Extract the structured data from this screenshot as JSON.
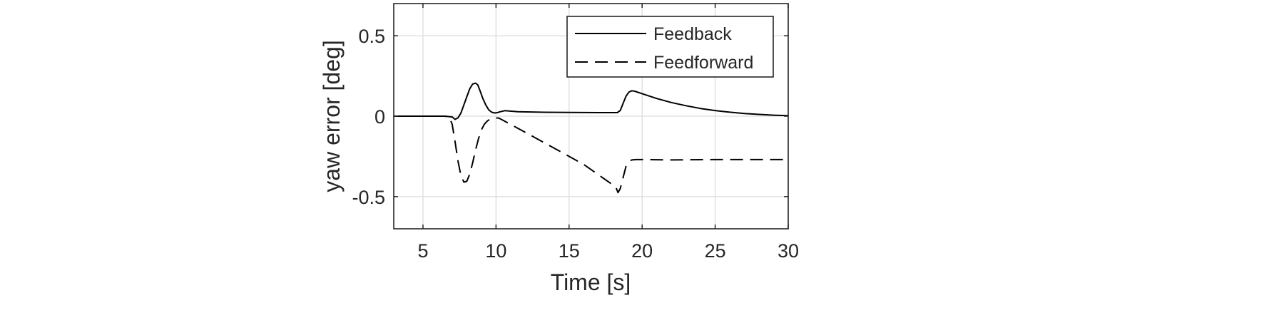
{
  "chart_data": {
    "type": "line",
    "title": "",
    "xlabel": "Time [s]",
    "ylabel": "yaw error [deg]",
    "xlim": [
      3,
      30
    ],
    "ylim": [
      -0.7,
      0.7
    ],
    "xticks": [
      5,
      10,
      15,
      20,
      25,
      30
    ],
    "yticks": [
      -0.5,
      0,
      0.5
    ],
    "xtick_labels": [
      "5",
      "10",
      "15",
      "20",
      "25",
      "30"
    ],
    "ytick_labels": [
      "-0.5",
      "0",
      "0.5"
    ],
    "grid": true,
    "legend_position": "top-right",
    "series": [
      {
        "name": "Feedback",
        "style": "solid",
        "color": "#000000",
        "x": [
          3,
          6.5,
          7.0,
          7.2,
          7.4,
          7.6,
          7.8,
          8.0,
          8.2,
          8.4,
          8.6,
          8.75,
          8.9,
          9.1,
          9.3,
          9.5,
          9.7,
          9.9,
          10.1,
          10.3,
          10.6,
          10.9,
          11.5,
          13,
          15,
          17,
          18.3,
          18.5,
          18.7,
          18.9,
          19.1,
          19.3,
          19.5,
          20,
          20.5,
          21,
          22,
          23,
          24,
          25,
          26,
          27,
          28,
          29,
          30
        ],
        "y": [
          0,
          0,
          -0.005,
          -0.02,
          -0.01,
          0.02,
          0.07,
          0.12,
          0.17,
          0.2,
          0.205,
          0.195,
          0.16,
          0.11,
          0.07,
          0.04,
          0.025,
          0.02,
          0.022,
          0.028,
          0.034,
          0.032,
          0.028,
          0.025,
          0.023,
          0.022,
          0.022,
          0.035,
          0.08,
          0.125,
          0.15,
          0.158,
          0.155,
          0.14,
          0.125,
          0.11,
          0.085,
          0.065,
          0.048,
          0.035,
          0.025,
          0.017,
          0.011,
          0.006,
          0.003
        ]
      },
      {
        "name": "Feedforward",
        "style": "dashed",
        "color": "#000000",
        "x": [
          3,
          6.5,
          6.8,
          7.0,
          7.2,
          7.4,
          7.6,
          7.8,
          8.0,
          8.2,
          8.4,
          8.6,
          8.8,
          9.0,
          9.2,
          9.4,
          9.6,
          9.8,
          10.0,
          10.2,
          12,
          14,
          16,
          18.2,
          18.35,
          18.5,
          18.7,
          18.9,
          19.1,
          19.3,
          19.6,
          20,
          22,
          25,
          30
        ],
        "y": [
          0,
          0,
          -0.005,
          -0.05,
          -0.16,
          -0.28,
          -0.37,
          -0.41,
          -0.405,
          -0.36,
          -0.29,
          -0.21,
          -0.14,
          -0.085,
          -0.05,
          -0.03,
          -0.018,
          -0.012,
          -0.01,
          -0.012,
          -0.1,
          -0.2,
          -0.3,
          -0.44,
          -0.475,
          -0.45,
          -0.38,
          -0.31,
          -0.28,
          -0.272,
          -0.27,
          -0.27,
          -0.272,
          -0.27,
          -0.27
        ]
      }
    ]
  }
}
